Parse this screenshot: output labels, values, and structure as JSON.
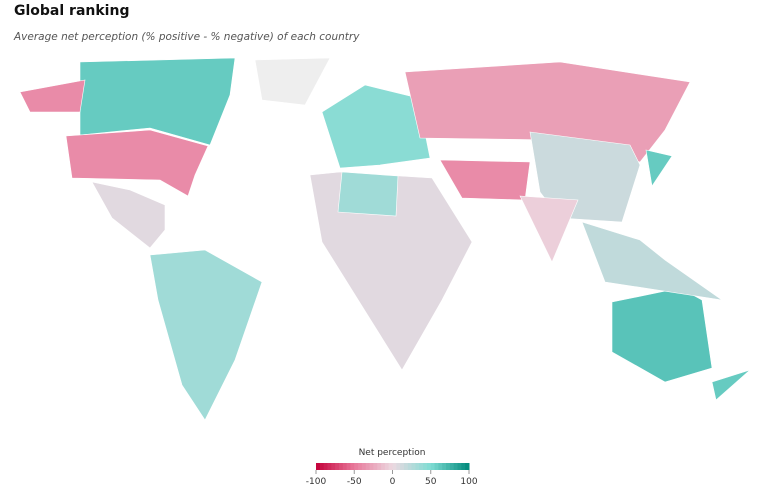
{
  "chart_data": {
    "type": "choropleth",
    "title": "Global ranking",
    "subtitle": "Average net perception (% positive - % negative) of each country",
    "legend_title": "Net perception",
    "scale_domain": [
      -100,
      100
    ],
    "scale_stops": [
      -100,
      -50,
      0,
      50,
      100
    ],
    "scale_colors": [
      "#c4003a",
      "#e8789a",
      "#ecd9e1",
      "#7fdcd3",
      "#00897b"
    ],
    "legend_ticks": [
      -100,
      -50,
      0,
      50,
      100
    ],
    "no_data_color": "#eeeeee",
    "values": [
      60,
      -40,
      -40,
      null,
      5,
      35,
      45,
      -30,
      15,
      -40,
      -5,
      5,
      35,
      65,
      20,
      60,
      60
    ]
  }
}
